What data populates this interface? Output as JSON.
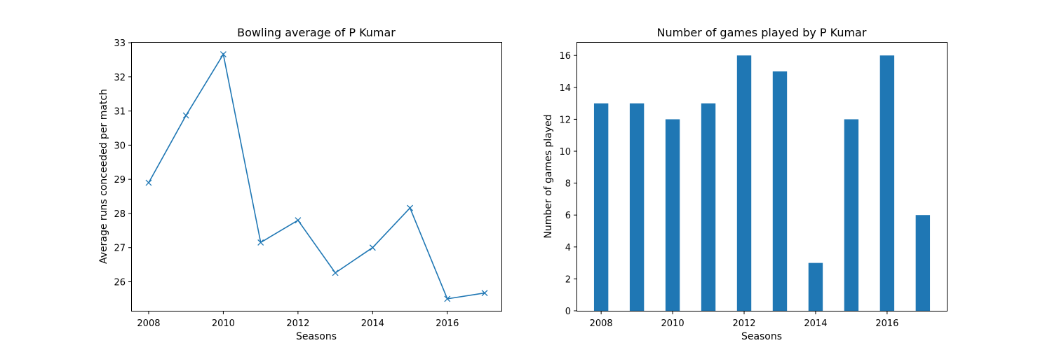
{
  "chart_data": [
    {
      "type": "line",
      "title": "Bowling average of P Kumar",
      "xlabel": "Seasons",
      "ylabel": "Average runs conceeded per match",
      "x": [
        2008,
        2009,
        2010,
        2011,
        2012,
        2013,
        2014,
        2015,
        2016,
        2017
      ],
      "series": [
        {
          "values": [
            28.9,
            30.87,
            32.66,
            27.15,
            27.8,
            26.26,
            27.0,
            28.16,
            25.5,
            25.67
          ]
        }
      ],
      "xticks": [
        2008,
        2010,
        2012,
        2014,
        2016
      ],
      "yticks": [
        26,
        27,
        28,
        29,
        30,
        31,
        32,
        33
      ],
      "xlim": [
        2007.55,
        2017.45
      ],
      "ylim": [
        25.15,
        33.0
      ],
      "marker": "x",
      "grid": false,
      "color": "#1f77b4"
    },
    {
      "type": "bar",
      "title": "Number of games played by P Kumar",
      "xlabel": "Seasons",
      "ylabel": "Number of games played",
      "x": [
        2008,
        2009,
        2010,
        2011,
        2012,
        2013,
        2014,
        2015,
        2016,
        2017
      ],
      "values": [
        13,
        13,
        12,
        13,
        16,
        15,
        3,
        12,
        16,
        6
      ],
      "bar_width": 0.4,
      "xticks": [
        2008,
        2010,
        2012,
        2014,
        2016
      ],
      "yticks": [
        0,
        2,
        4,
        6,
        8,
        10,
        12,
        14,
        16
      ],
      "xlim": [
        2007.33,
        2017.67
      ],
      "ylim": [
        0,
        16.8
      ],
      "grid": false,
      "color": "#1f77b4"
    }
  ]
}
